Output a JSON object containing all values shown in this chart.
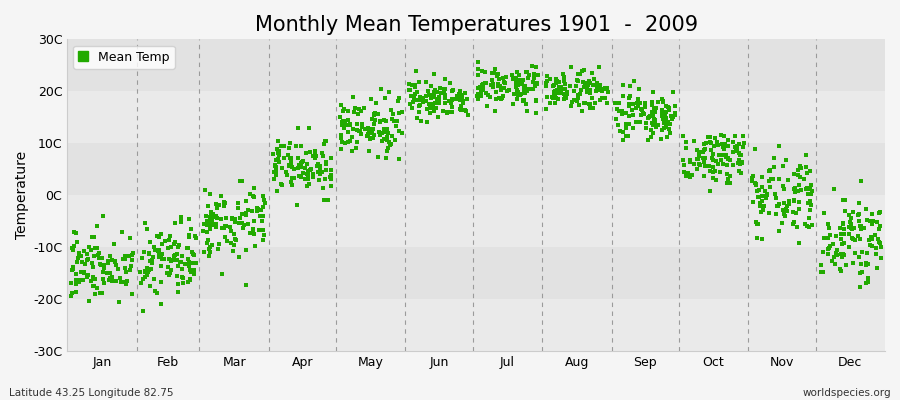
{
  "title": "Monthly Mean Temperatures 1901  -  2009",
  "ylabel": "Temperature",
  "xlabel_labels": [
    "Jan",
    "Feb",
    "Mar",
    "Apr",
    "May",
    "Jun",
    "Jul",
    "Aug",
    "Sep",
    "Oct",
    "Nov",
    "Dec"
  ],
  "ytick_labels": [
    "-30C",
    "-20C",
    "-10C",
    "0C",
    "10C",
    "20C",
    "30C"
  ],
  "ytick_values": [
    -30,
    -20,
    -10,
    0,
    10,
    20,
    30
  ],
  "ylim": [
    -30,
    30
  ],
  "dot_color": "#22aa00",
  "dot_size": 5,
  "legend_label": "Mean Temp",
  "bottom_left": "Latitude 43.25 Longitude 82.75",
  "bottom_right": "worldspecies.org",
  "bg_color": "#f5f5f5",
  "plot_bg_color": "#f0f0f0",
  "monthly_means": [
    -13.5,
    -12.5,
    -5.0,
    5.5,
    13.0,
    18.5,
    21.0,
    20.0,
    15.0,
    7.5,
    0.5,
    -8.5
  ],
  "monthly_stds": [
    3.5,
    3.8,
    3.5,
    2.8,
    2.5,
    2.0,
    1.8,
    2.0,
    2.5,
    2.5,
    3.5,
    3.8
  ],
  "n_years": 109,
  "title_fontsize": 15,
  "axis_fontsize": 10,
  "tick_fontsize": 9,
  "band_colors_h": [
    "#eaeaea",
    "#e2e2e2"
  ],
  "vline_color": "#888888",
  "dashes": [
    4,
    4
  ]
}
